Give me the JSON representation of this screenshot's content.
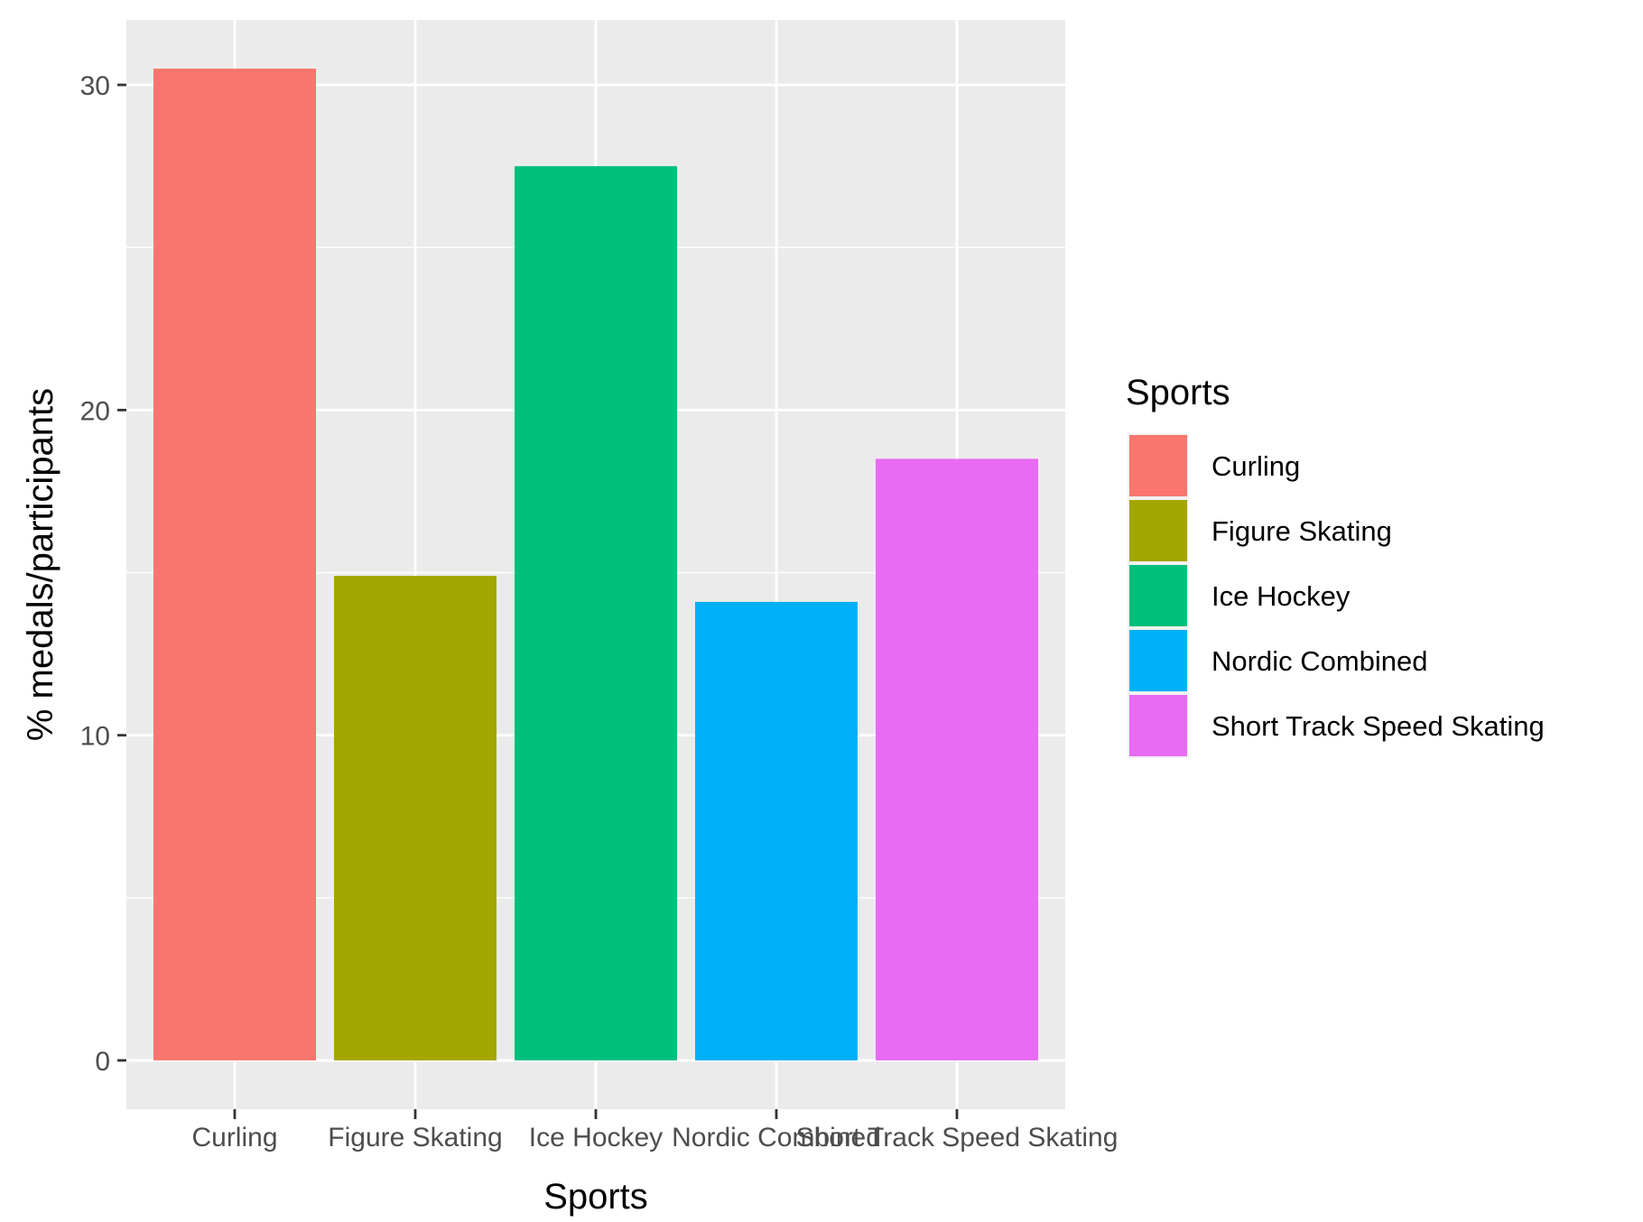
{
  "chart_data": {
    "type": "bar",
    "categories": [
      "Curling",
      "Figure Skating",
      "Ice Hockey",
      "Nordic Combined",
      "Short Track Speed Skating"
    ],
    "values": [
      30.5,
      14.9,
      27.5,
      14.1,
      18.5
    ],
    "colors": [
      "#F8766D",
      "#A3A500",
      "#00BF7D",
      "#00B0F6",
      "#E76BF3"
    ],
    "xlabel": "Sports",
    "ylabel": "% medals/participants",
    "ylim": [
      -1.5,
      32.0
    ],
    "yticks": [
      0,
      10,
      20,
      30
    ],
    "ytick_labels": [
      "0",
      "10",
      "20",
      "30"
    ],
    "grid": true,
    "legend": {
      "title": "Sports",
      "placement": "right",
      "items": [
        "Curling",
        "Figure Skating",
        "Ice Hockey",
        "Nordic Combined",
        "Short Track Speed Skating"
      ]
    }
  }
}
